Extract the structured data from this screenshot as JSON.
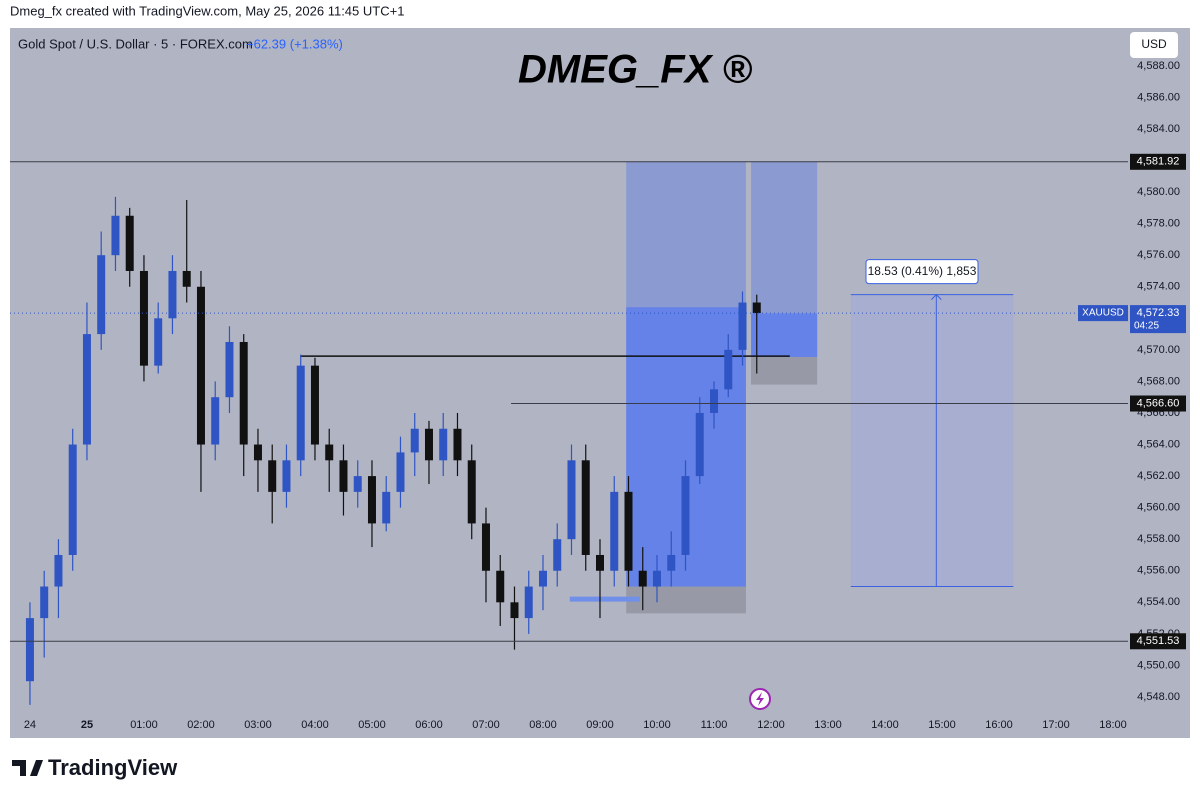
{
  "chart_data": {
    "type": "candlestick",
    "credit": "Dmeg_fx created with TradingView.com, May 25, 2026 11:45 UTC+1",
    "title": "DMEG_FX ®",
    "subtitle": "Gold Spot / U.S. Dollar · 5 · FOREX.com",
    "change": "+62.39 (+1.38%)",
    "currency": "USD",
    "footer": "TradingView",
    "up_color": "#2f55c4",
    "down_color": "#111111",
    "x": [
      -1,
      -0.75,
      -0.5,
      -0.25,
      0,
      0.25,
      0.5,
      0.75,
      1,
      1.25,
      1.5,
      1.75,
      2,
      2.25,
      2.5,
      2.75,
      3,
      3.25,
      3.5,
      3.75,
      4,
      4.25,
      4.5,
      4.75,
      5,
      5.25,
      5.5,
      5.75,
      6,
      6.25,
      6.5,
      6.75,
      7,
      7.25,
      7.5,
      7.75,
      8,
      8.25,
      8.5,
      8.75,
      9,
      9.25,
      9.5,
      9.75,
      10,
      10.25,
      10.5,
      10.75,
      11,
      11.25,
      11.5,
      11.75
    ],
    "open": [
      4549,
      4553,
      4555,
      4557,
      4564,
      4571,
      4576,
      4578.5,
      4575,
      4569,
      4572,
      4575,
      4574,
      4564,
      4567,
      4570.5,
      4564,
      4563,
      4561,
      4563,
      4569,
      4564,
      4563,
      4561,
      4562,
      4559,
      4561,
      4563.5,
      4565,
      4563,
      4565,
      4563,
      4559,
      4556,
      4554,
      4553,
      4555,
      4556,
      4558,
      4563,
      4557,
      4556,
      4561,
      4556,
      4555,
      4556,
      4557,
      4562,
      4566,
      4567.5,
      4570,
      4573
    ],
    "high": [
      4554,
      4556,
      4558,
      4565,
      4573,
      4577.5,
      4579.7,
      4579,
      4576,
      4573,
      4576,
      4579.5,
      4575,
      4568,
      4571.5,
      4571,
      4565,
      4564,
      4564,
      4569.7,
      4569.5,
      4565,
      4564,
      4563,
      4563,
      4562,
      4564.5,
      4566,
      4565.5,
      4566,
      4566,
      4564,
      4560,
      4557,
      4555,
      4556,
      4557,
      4559,
      4564,
      4564,
      4558,
      4562,
      4562,
      4557.5,
      4557,
      4558.5,
      4563,
      4567,
      4568,
      4571,
      4573.7,
      4573.5
    ],
    "low": [
      4547.5,
      4550.5,
      4553,
      4556,
      4563,
      4570,
      4575,
      4574,
      4568,
      4568.5,
      4571,
      4573,
      4561,
      4563,
      4566,
      4562,
      4561,
      4559,
      4560,
      4562,
      4563,
      4561,
      4559.5,
      4560,
      4557.5,
      4558.5,
      4560,
      4562,
      4561.5,
      4562,
      4562,
      4558,
      4554,
      4552.5,
      4551,
      4552,
      4553.5,
      4555,
      4557,
      4556,
      4553,
      4555,
      4555,
      4553.5,
      4554,
      4555,
      4556,
      4561.5,
      4565,
      4567,
      4569,
      4568.5
    ],
    "close": [
      4553,
      4555,
      4557,
      4564,
      4571,
      4576,
      4578.5,
      4575,
      4569,
      4572,
      4575,
      4574,
      4564,
      4567,
      4570.5,
      4564,
      4563,
      4561,
      4563,
      4569,
      4564,
      4563,
      4561,
      4562,
      4559,
      4561,
      4563.5,
      4565,
      4563,
      4565,
      4563,
      4559,
      4556,
      4554,
      4553,
      4555,
      4556,
      4558,
      4563,
      4557,
      4556,
      4561,
      4556,
      4555,
      4556,
      4557,
      4562,
      4566,
      4567.5,
      4570,
      4573,
      4572.33
    ],
    "xlim": [
      -1.35,
      18.21
    ],
    "ylim": [
      4545.4,
      4590.4
    ],
    "xticks": [
      {
        "value": -1,
        "label": "24"
      },
      {
        "value": 0,
        "label": "25"
      },
      {
        "value": 1,
        "label": "01:00"
      },
      {
        "value": 2,
        "label": "02:00"
      },
      {
        "value": 3,
        "label": "03:00"
      },
      {
        "value": 4,
        "label": "04:00"
      },
      {
        "value": 5,
        "label": "05:00"
      },
      {
        "value": 6,
        "label": "06:00"
      },
      {
        "value": 7,
        "label": "07:00"
      },
      {
        "value": 8,
        "label": "08:00"
      },
      {
        "value": 9,
        "label": "09:00"
      },
      {
        "value": 10,
        "label": "10:00"
      },
      {
        "value": 11,
        "label": "11:00"
      },
      {
        "value": 12,
        "label": "12:00"
      },
      {
        "value": 13,
        "label": "13:00"
      },
      {
        "value": 14,
        "label": "14:00"
      },
      {
        "value": 15,
        "label": "15:00"
      },
      {
        "value": 16,
        "label": "16:00"
      },
      {
        "value": 17,
        "label": "17:00"
      },
      {
        "value": 18,
        "label": "18:00"
      }
    ],
    "yticks": [
      {
        "value": 4548,
        "label": "4,548.00"
      },
      {
        "value": 4550,
        "label": "4,550.00"
      },
      {
        "value": 4552,
        "label": "4,552.00"
      },
      {
        "value": 4554,
        "label": "4,554.00"
      },
      {
        "value": 4556,
        "label": "4,556.00"
      },
      {
        "value": 4558,
        "label": "4,558.00"
      },
      {
        "value": 4560,
        "label": "4,560.00"
      },
      {
        "value": 4562,
        "label": "4,562.00"
      },
      {
        "value": 4564,
        "label": "4,564.00"
      },
      {
        "value": 4566,
        "label": "4,566.00"
      },
      {
        "value": 4568,
        "label": "4,568.00"
      },
      {
        "value": 4570,
        "label": "4,570.00"
      },
      {
        "value": 4572,
        "label": "4,572.00"
      },
      {
        "value": 4574,
        "label": "4,574.00"
      },
      {
        "value": 4576,
        "label": "4,576.00"
      },
      {
        "value": 4578,
        "label": "4,578.00"
      },
      {
        "value": 4580,
        "label": "4,580.00"
      },
      {
        "value": 4582,
        "label": "4,582.00"
      },
      {
        "value": 4584,
        "label": "4,584.00"
      },
      {
        "value": 4586,
        "label": "4,586.00"
      },
      {
        "value": 4588,
        "label": "4,588.00"
      }
    ],
    "grid": false,
    "levels": [
      {
        "value": 4581.92,
        "label": "4,581.92"
      },
      {
        "value": 4566.6,
        "label": "4,566.60",
        "from": 7.44
      },
      {
        "value": 4551.53,
        "label": "4,551.53"
      }
    ],
    "last_price": {
      "symbol": "XAUUSD",
      "value": 4572.33,
      "label": "4,572.33",
      "countdown": "04:25"
    },
    "positions": [
      {
        "x": [
          9.46,
          11.56
        ],
        "target": 4581.92,
        "price": 4572.7,
        "entry": 4555,
        "stop": 4553.3
      },
      {
        "x": [
          11.65,
          12.81
        ],
        "target": 4581.92,
        "price": 4572.3,
        "entry": 4569.55,
        "stop": 4567.8
      }
    ],
    "lines": [
      {
        "x": [
          3.74,
          12.33
        ],
        "value": 4569.6,
        "color": "#111111"
      },
      {
        "x": [
          8.47,
          9.7
        ],
        "value": 4554.2,
        "color": "#6f8fe8"
      }
    ],
    "measure": {
      "x": [
        13.4,
        16.25
      ],
      "arrow_x": 14.9,
      "from": 4555,
      "to": 4573.5,
      "label": "18.53 (0.41%) 1,853"
    }
  }
}
